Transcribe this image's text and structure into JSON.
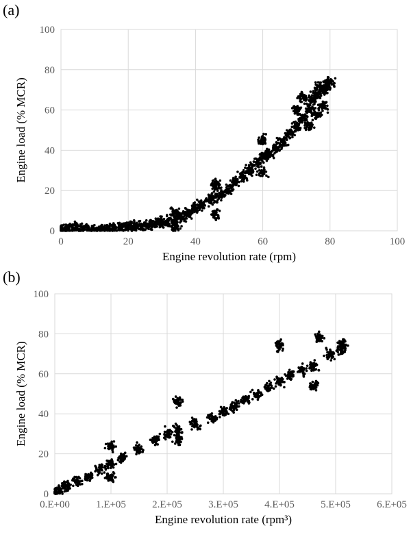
{
  "chart_data": [
    {
      "panel_label": "(a)",
      "type": "scatter",
      "xlabel": "Engine revolution rate (rpm)",
      "ylabel": "Engine load (% MCR)",
      "xlim": [
        0,
        100
      ],
      "ylim": [
        0,
        100
      ],
      "xticks": [
        0,
        20,
        40,
        60,
        80,
        100
      ],
      "xtick_labels": [
        "0",
        "20",
        "40",
        "60",
        "80",
        "100"
      ],
      "yticks": [
        0,
        20,
        40,
        60,
        80,
        100
      ],
      "ytick_labels": [
        "0",
        "20",
        "40",
        "60",
        "80",
        "100"
      ],
      "grid": true,
      "marker_color": "#000000",
      "series": [
        {
          "points": [
            [
              0,
              0.5
            ],
            [
              2,
              0.5
            ],
            [
              4,
              1
            ],
            [
              6,
              0.5
            ],
            [
              8,
              1
            ],
            [
              10,
              0.5
            ],
            [
              12,
              1
            ],
            [
              14,
              1
            ],
            [
              16,
              1
            ],
            [
              18,
              1.5
            ],
            [
              20,
              2
            ],
            [
              22,
              2
            ],
            [
              24,
              2.5
            ],
            [
              26,
              3
            ],
            [
              28,
              3.5
            ],
            [
              30,
              4
            ],
            [
              32,
              5
            ],
            [
              34,
              6
            ],
            [
              34,
              2
            ],
            [
              34,
              9
            ],
            [
              36,
              7
            ],
            [
              38,
              9
            ],
            [
              40,
              11
            ],
            [
              42,
              13
            ],
            [
              44,
              15
            ],
            [
              46,
              17
            ],
            [
              46,
              8
            ],
            [
              46,
              23
            ],
            [
              48,
              19
            ],
            [
              50,
              21
            ],
            [
              52,
              24
            ],
            [
              54,
              27
            ],
            [
              56,
              30
            ],
            [
              58,
              34
            ],
            [
              60,
              37
            ],
            [
              60,
              29
            ],
            [
              60,
              45
            ],
            [
              62,
              38
            ],
            [
              64,
              41
            ],
            [
              66,
              44
            ],
            [
              68,
              48
            ],
            [
              70,
              52
            ],
            [
              70,
              60
            ],
            [
              72,
              56
            ],
            [
              72,
              66
            ],
            [
              74,
              60
            ],
            [
              74,
              52
            ],
            [
              75,
              65
            ],
            [
              76,
              68
            ],
            [
              76,
              58
            ],
            [
              77,
              72
            ],
            [
              78,
              70
            ],
            [
              78,
              62
            ],
            [
              79,
              72
            ],
            [
              80,
              74
            ]
          ]
        }
      ]
    },
    {
      "panel_label": "(b)",
      "type": "scatter",
      "xlabel": "Engine revolution rate (rpm³)",
      "ylabel": "Engine load (% MCR)",
      "xlim": [
        0,
        600000
      ],
      "ylim": [
        0,
        100
      ],
      "xticks": [
        0,
        100000,
        200000,
        300000,
        400000,
        500000,
        600000
      ],
      "xtick_labels": [
        "0.E+00",
        "1.E+05",
        "2.E+05",
        "3.E+05",
        "4.E+05",
        "5.E+05",
        "6.E+05"
      ],
      "yticks": [
        0,
        20,
        40,
        60,
        80,
        100
      ],
      "ytick_labels": [
        "0",
        "20",
        "40",
        "60",
        "80",
        "100"
      ],
      "grid": true,
      "marker_color": "#000000",
      "series": [
        {
          "points": [
            [
              0,
              0.5
            ],
            [
              8000,
              2
            ],
            [
              20000,
              4
            ],
            [
              40000,
              6
            ],
            [
              60000,
              9
            ],
            [
              80000,
              12
            ],
            [
              100000,
              15
            ],
            [
              100000,
              8
            ],
            [
              100000,
              24
            ],
            [
              120000,
              18
            ],
            [
              150000,
              22
            ],
            [
              180000,
              27
            ],
            [
              200000,
              30
            ],
            [
              220000,
              32
            ],
            [
              220000,
              27
            ],
            [
              220000,
              46
            ],
            [
              250000,
              35
            ],
            [
              280000,
              38
            ],
            [
              300000,
              41
            ],
            [
              320000,
              44
            ],
            [
              340000,
              47
            ],
            [
              360000,
              50
            ],
            [
              380000,
              53
            ],
            [
              400000,
              56
            ],
            [
              400000,
              74
            ],
            [
              420000,
              59
            ],
            [
              440000,
              62
            ],
            [
              460000,
              64
            ],
            [
              460000,
              54
            ],
            [
              470000,
              78
            ],
            [
              490000,
              70
            ],
            [
              510000,
              72
            ],
            [
              512000,
              75
            ]
          ]
        }
      ]
    }
  ]
}
